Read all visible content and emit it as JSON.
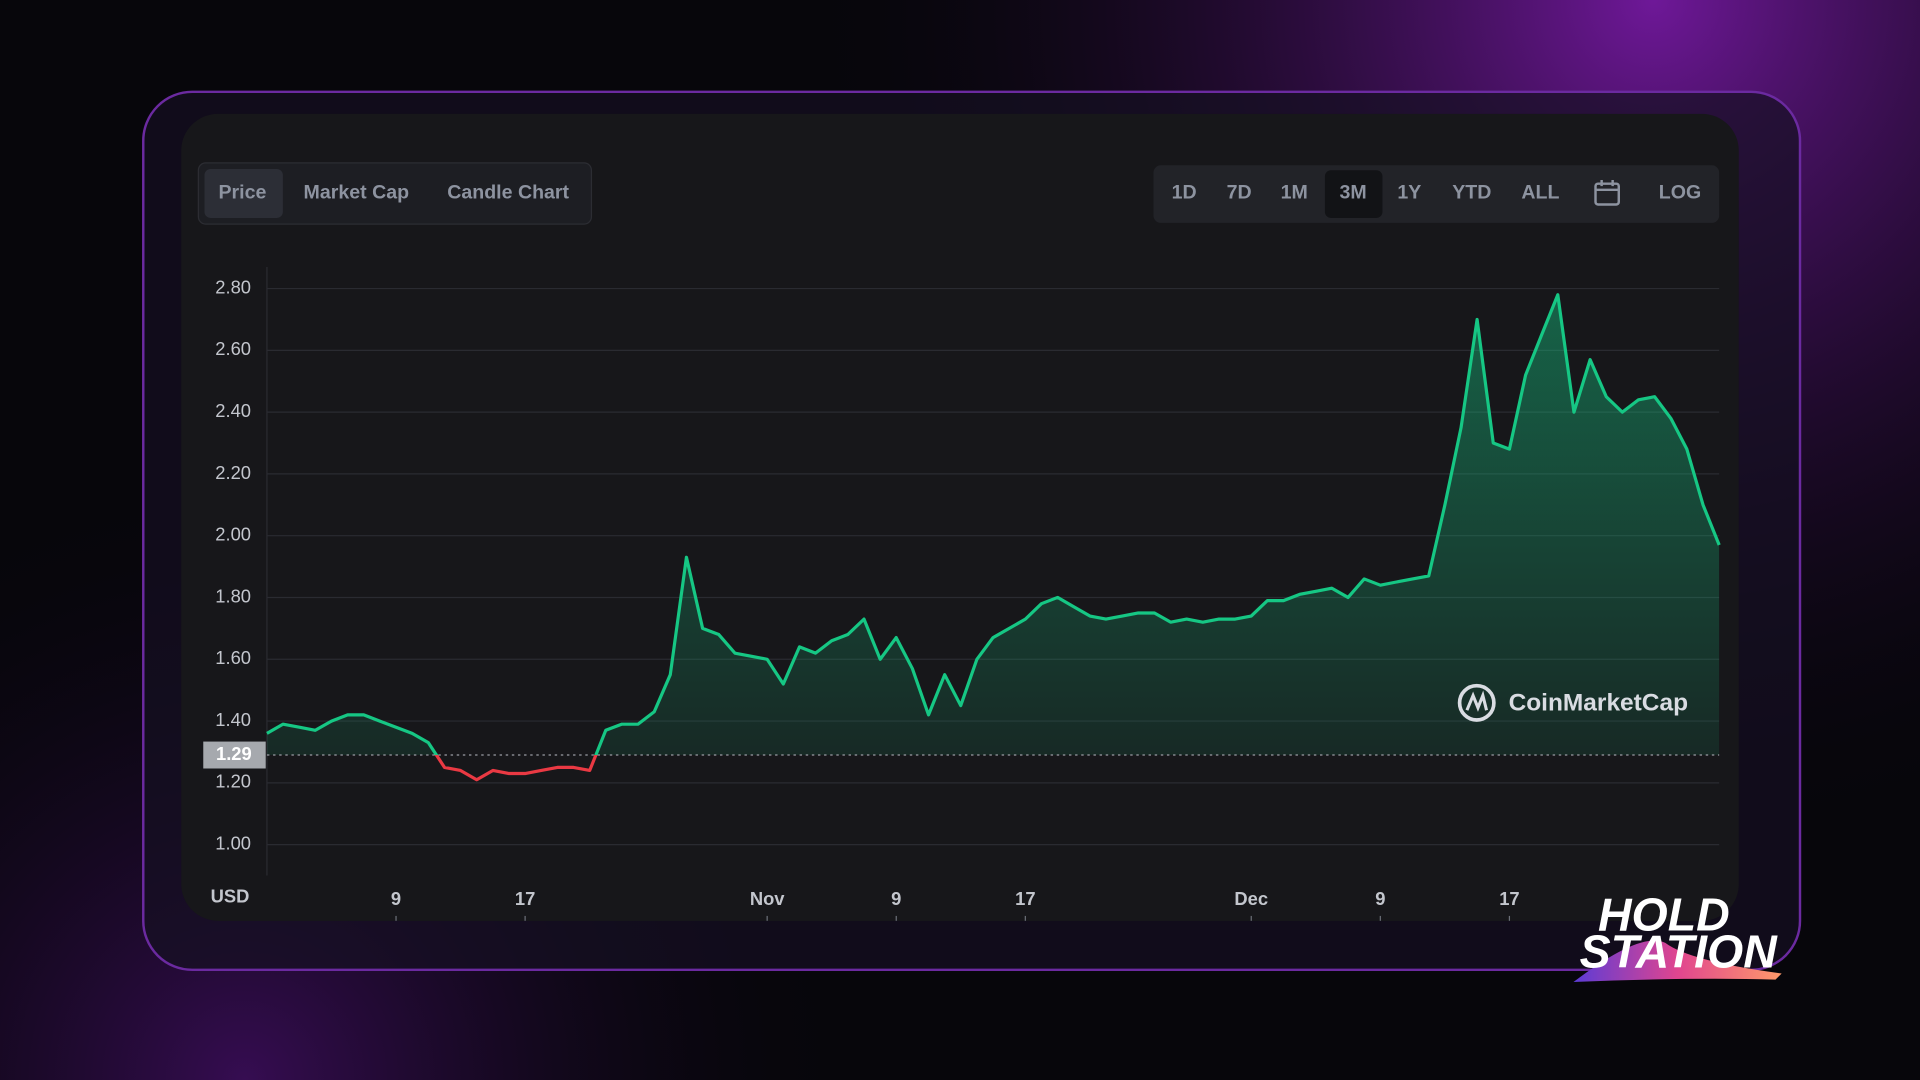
{
  "ui": {
    "tabs": [
      "Price",
      "Market Cap",
      "Candle Chart"
    ],
    "ranges": [
      "1D",
      "7D",
      "1M",
      "3M",
      "1Y",
      "YTD",
      "ALL"
    ],
    "log": "LOG",
    "watermark": "CoinMarketCap",
    "logo": [
      "HOLD",
      "STATION"
    ]
  },
  "chart_data": {
    "type": "line",
    "ylabel": "USD",
    "categories": [
      null,
      null,
      null,
      null,
      null,
      null,
      null,
      null,
      "9",
      null,
      null,
      null,
      null,
      null,
      null,
      null,
      "17",
      null,
      null,
      null,
      null,
      null,
      null,
      null,
      null,
      null,
      null,
      null,
      null,
      null,
      null,
      "Nov",
      null,
      null,
      null,
      null,
      null,
      null,
      null,
      "9",
      null,
      null,
      null,
      null,
      null,
      null,
      null,
      "17",
      null,
      null,
      null,
      null,
      null,
      null,
      null,
      null,
      null,
      null,
      null,
      null,
      null,
      "Dec",
      null,
      null,
      null,
      null,
      null,
      null,
      null,
      "9",
      null,
      null,
      null,
      null,
      null,
      null,
      null,
      "17",
      null,
      null,
      null,
      null,
      null,
      null,
      null,
      null,
      null,
      null,
      null,
      null,
      null
    ],
    "values": [
      1.36,
      1.39,
      1.38,
      1.37,
      1.4,
      1.42,
      1.42,
      1.4,
      1.38,
      1.36,
      1.33,
      1.25,
      1.24,
      1.21,
      1.24,
      1.23,
      1.23,
      1.24,
      1.25,
      1.25,
      1.24,
      1.37,
      1.39,
      1.39,
      1.43,
      1.55,
      1.93,
      1.7,
      1.68,
      1.62,
      1.61,
      1.6,
      1.52,
      1.64,
      1.62,
      1.66,
      1.68,
      1.73,
      1.6,
      1.67,
      1.57,
      1.42,
      1.55,
      1.45,
      1.6,
      1.67,
      1.7,
      1.73,
      1.78,
      1.8,
      1.77,
      1.74,
      1.73,
      1.74,
      1.75,
      1.75,
      1.72,
      1.73,
      1.72,
      1.73,
      1.73,
      1.74,
      1.79,
      1.79,
      1.81,
      1.82,
      1.83,
      1.8,
      1.86,
      1.84,
      1.85,
      1.86,
      1.87,
      2.1,
      2.35,
      2.7,
      2.3,
      2.28,
      2.52,
      2.65,
      2.78,
      2.4,
      2.57,
      2.45,
      2.4,
      2.44,
      2.45,
      2.38,
      2.28,
      2.1,
      1.97
    ],
    "color": "#16c784",
    "below_color": "#ea3943",
    "baseline": 1.29,
    "ylim": [
      0.9,
      2.87
    ],
    "yticks": [
      {
        "value": 1.0,
        "label": "1.00"
      },
      {
        "value": 1.2,
        "label": "1.20"
      },
      {
        "value": 1.4,
        "label": "1.40"
      },
      {
        "value": 1.6,
        "label": "1.60"
      },
      {
        "value": 1.8,
        "label": "1.80"
      },
      {
        "value": 2.0,
        "label": "2.00"
      },
      {
        "value": 2.2,
        "label": "2.20"
      },
      {
        "value": 2.4,
        "label": "2.40"
      },
      {
        "value": 2.6,
        "label": "2.60"
      },
      {
        "value": 2.8,
        "label": "2.80"
      }
    ],
    "grid": true
  }
}
